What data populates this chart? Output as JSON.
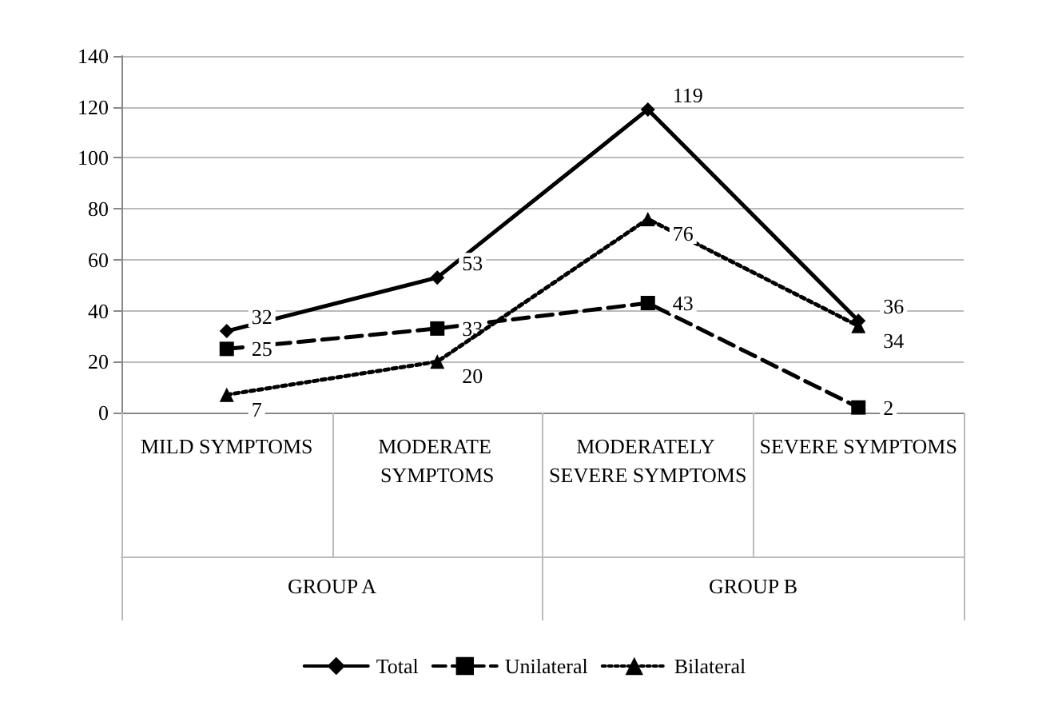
{
  "chart_data": {
    "type": "line",
    "categories": [
      "MILD SYMPTOMS",
      "MODERATE SYMPTOMS",
      "MODERATELY SEVERE SYMPTOMS",
      "SEVERE SYMPTOMS"
    ],
    "series": [
      {
        "name": "Total",
        "color": "#000000",
        "values": [
          32,
          53,
          119,
          36
        ],
        "marker": "diamond",
        "line_style": "solid"
      },
      {
        "name": "Unilateral",
        "color": "#000000",
        "values": [
          25,
          33,
          43,
          2
        ],
        "marker": "square",
        "line_style": "dashed"
      },
      {
        "name": "Bilateral",
        "color": "#000000",
        "values": [
          7,
          20,
          76,
          34
        ],
        "marker": "triangle",
        "line_style": "dotted"
      }
    ],
    "annotations": [
      "GROUP A",
      "GROUP B"
    ],
    "ylim": [
      0,
      140
    ],
    "yticks": [
      0,
      20,
      40,
      60,
      80,
      100,
      120,
      140
    ],
    "grid": "y",
    "legend": "bottom",
    "data_labels": true
  }
}
